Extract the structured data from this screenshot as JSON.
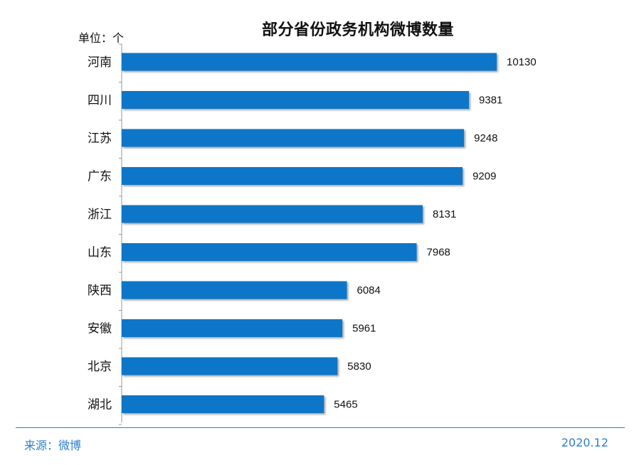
{
  "footer": {
    "source": "来源：微博",
    "date": "2020.12"
  },
  "colors": {
    "bar": "#0b76c8",
    "footer": "#2f7fc8",
    "axis": "#999999"
  },
  "chart_data": {
    "type": "bar",
    "orientation": "horizontal",
    "title": "部分省份政务机构微博数量",
    "unit_label": "单位：个",
    "categories": [
      "河南",
      "四川",
      "江苏",
      "广东",
      "浙江",
      "山东",
      "陕西",
      "安徽",
      "北京",
      "湖北"
    ],
    "values": [
      10130,
      9381,
      9248,
      9209,
      8131,
      7968,
      6084,
      5961,
      5830,
      5465
    ],
    "xlim": [
      0,
      10130
    ],
    "data_labels": true,
    "grid": false,
    "legend": "none"
  }
}
